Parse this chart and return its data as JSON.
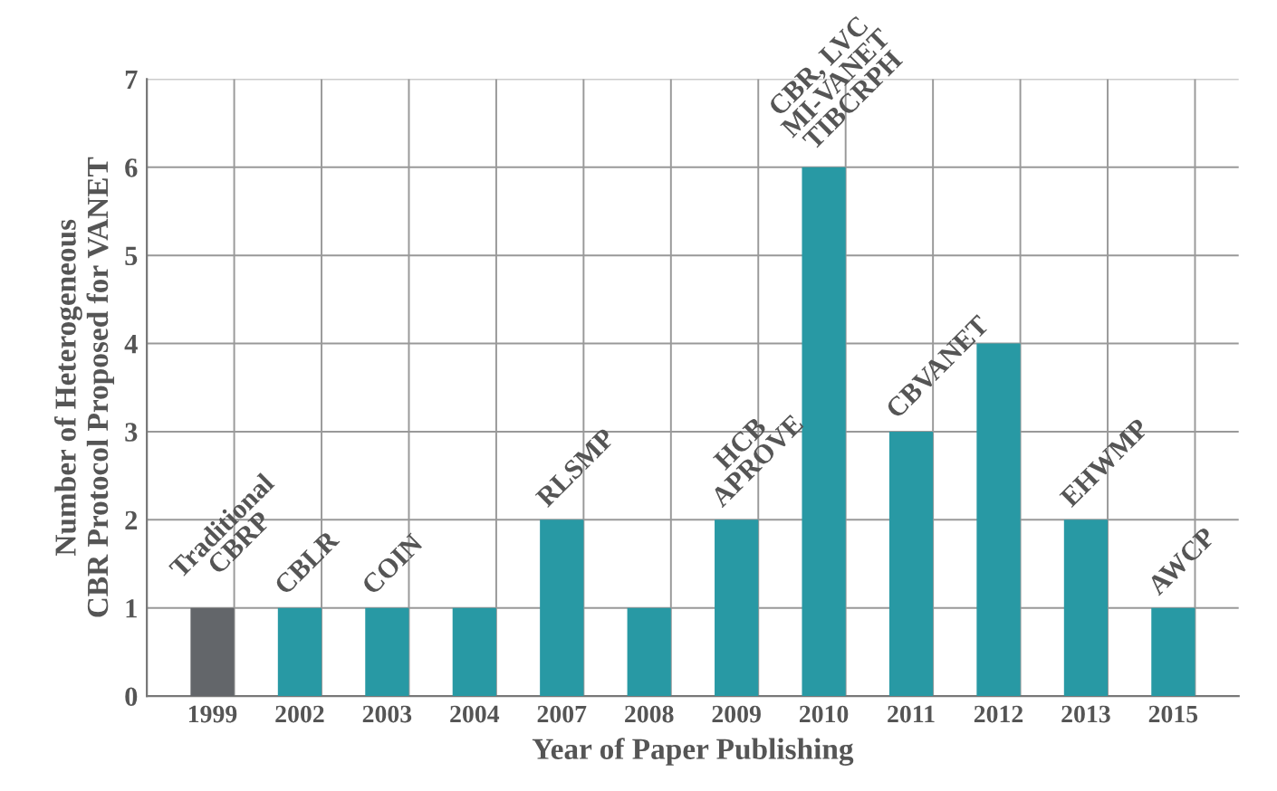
{
  "chart_data": {
    "type": "bar",
    "xlabel": "Year of Paper Publishing",
    "ylabel": "Number of Heterogeneous\nCBR Protocol Proposed for VANET",
    "categories": [
      "1999",
      "2002",
      "2003",
      "2004",
      "2007",
      "2008",
      "2009",
      "2010",
      "2011",
      "2012",
      "2013",
      "2015"
    ],
    "values": [
      1,
      1,
      1,
      1,
      2,
      1,
      2,
      6,
      3,
      4,
      2,
      1
    ],
    "colors": [
      "#63666a",
      "#2899a4",
      "#2899a4",
      "#2899a4",
      "#2899a4",
      "#2899a4",
      "#2899a4",
      "#2899a4",
      "#2899a4",
      "#2899a4",
      "#2899a4",
      "#2899a4"
    ],
    "ylim": [
      0,
      7
    ],
    "yticks": [
      0,
      1,
      2,
      3,
      4,
      5,
      6,
      7
    ],
    "grid": true,
    "annotations": [
      {
        "text": "Traditional\nCBRP",
        "x": "1999",
        "y": 1
      },
      {
        "text": "CBLR",
        "x": "2002",
        "y": 1
      },
      {
        "text": "COIN",
        "x": "2003",
        "y": 1
      },
      {
        "text": "RLSMP",
        "x": "2007",
        "y": 2
      },
      {
        "text": "HCB\nAPROVE",
        "x": "2009",
        "y": 2
      },
      {
        "text": "CBR, LVC\nMI-VANET\nTIBCRPH",
        "x": "2010",
        "y": 6
      },
      {
        "text": "CBVANET",
        "x": "2011",
        "y": 3
      },
      {
        "text": "EHWMP",
        "x": "2013",
        "y": 2
      },
      {
        "text": "AWCP",
        "x": "2015",
        "y": 1
      }
    ]
  }
}
